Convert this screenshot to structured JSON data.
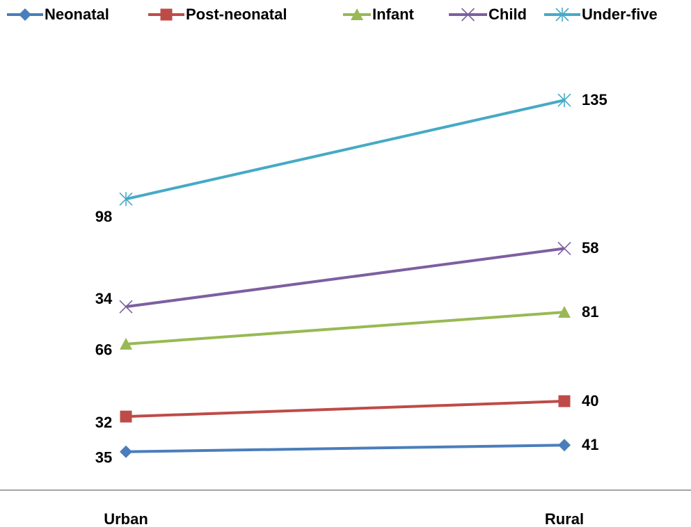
{
  "chart_data": {
    "type": "line",
    "stacked": true,
    "categories": [
      "Urban",
      "Rural"
    ],
    "ylim": [
      0,
      400
    ],
    "series": [
      {
        "name": "Neonatal",
        "color": "#4a7ebb",
        "marker": "diamond",
        "values": [
          35,
          41
        ]
      },
      {
        "name": "Post-neonatal",
        "color": "#be4b48",
        "marker": "square",
        "values": [
          32,
          40
        ]
      },
      {
        "name": "Infant",
        "color": "#98b954",
        "marker": "triangle",
        "values": [
          66,
          81
        ]
      },
      {
        "name": "Child",
        "color": "#7d5fa0",
        "marker": "x",
        "values": [
          34,
          58
        ]
      },
      {
        "name": "Under-five",
        "color": "#46aac5",
        "marker": "asterisk",
        "values": [
          98,
          135
        ]
      }
    ]
  }
}
